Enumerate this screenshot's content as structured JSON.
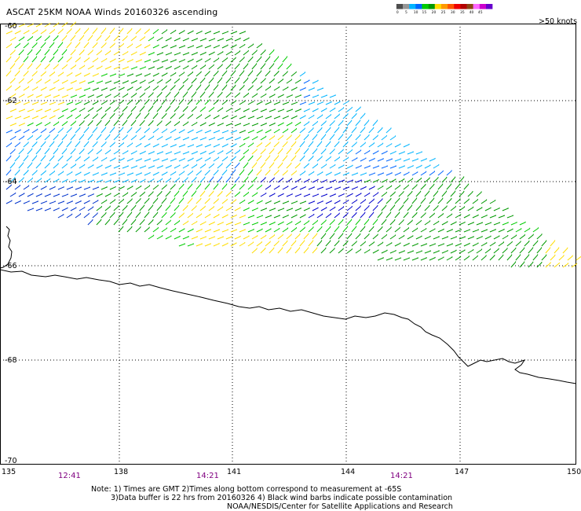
{
  "title": "ASCAT 25KM NOAA Winds 20160326 ascending",
  "colorbar": {
    "colors": [
      "#4d4d4d",
      "#969696",
      "#00b4ff",
      "#0066ff",
      "#00cc00",
      "#009900",
      "#ffdd00",
      "#ff9900",
      "#ff5500",
      "#ee0000",
      "#b30000",
      "#8b4513",
      "#ff66ff",
      "#cc00cc",
      "#6600cc"
    ],
    "labels": [
      "0",
      "5",
      "10",
      "15",
      "20",
      "25",
      "30",
      "35",
      "40",
      "45",
      ">50 knots"
    ]
  },
  "axes": {
    "lon_labels": [
      "135",
      "138",
      "141",
      "144",
      "147",
      "150"
    ],
    "lat_labels": [
      "-60",
      "-62",
      "-64",
      "-66",
      "-68",
      "-70"
    ]
  },
  "times": [
    "12:41",
    "14:21",
    "14:21"
  ],
  "notes": [
    "Note: 1) Times are GMT 2)Times along bottom correspond to measurement at -65S",
    "3)Data buffer is 22 hrs from 20160326 4) Black wind barbs indicate possible contamination",
    "NOAA/NESDIS/Center for Satellite Applications and Research"
  ]
}
